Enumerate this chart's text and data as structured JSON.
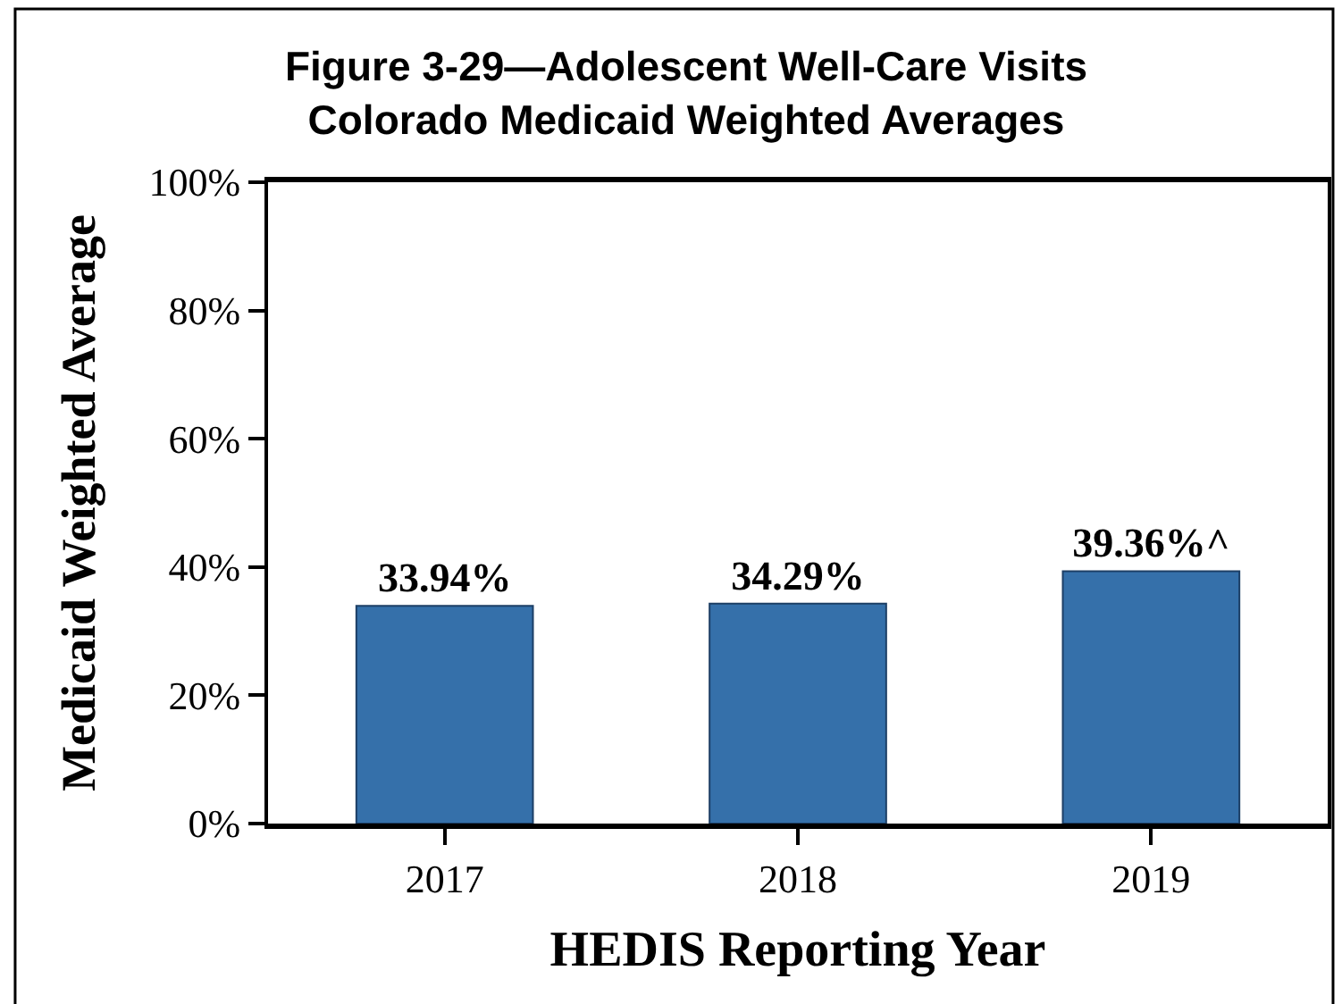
{
  "chart_data": {
    "type": "bar",
    "title": "Figure 3-29—Adolescent Well-Care Visits\nColorado Medicaid Weighted Averages",
    "xlabel": "HEDIS Reporting Year",
    "ylabel": "Medicaid Weighted Average",
    "categories": [
      "2017",
      "2018",
      "2019"
    ],
    "values": [
      33.94,
      34.29,
      39.36
    ],
    "value_labels": [
      "33.94%",
      "34.29%",
      "39.36%^"
    ],
    "color": "#3570aa",
    "ylim": [
      0,
      100
    ],
    "yticks": [
      {
        "value": 0,
        "label": "0%"
      },
      {
        "value": 20,
        "label": "20%"
      },
      {
        "value": 40,
        "label": "40%"
      },
      {
        "value": 60,
        "label": "60%"
      },
      {
        "value": 80,
        "label": "80%"
      },
      {
        "value": 100,
        "label": "100%"
      }
    ]
  }
}
